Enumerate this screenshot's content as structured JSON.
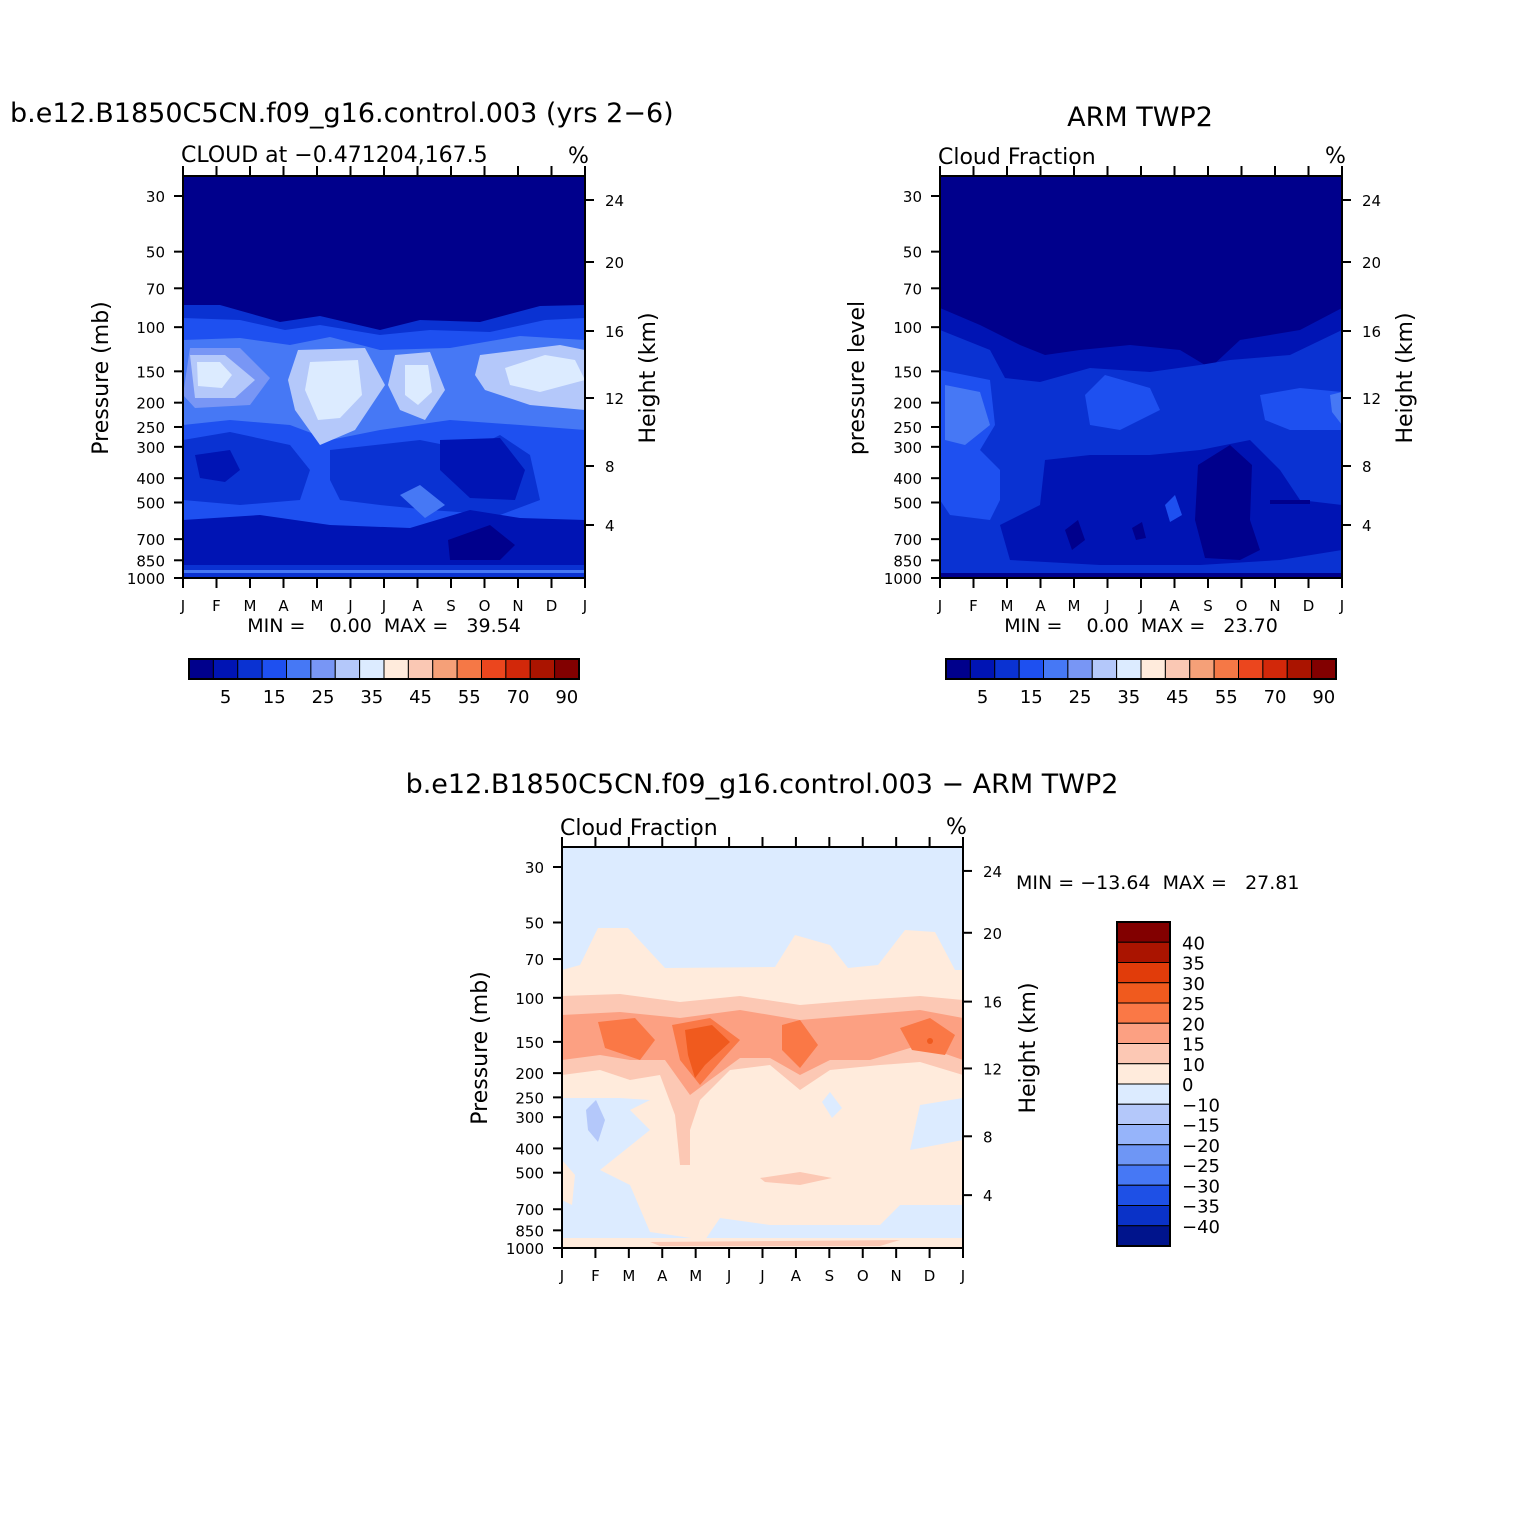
{
  "months": [
    "J",
    "F",
    "M",
    "A",
    "M",
    "J",
    "J",
    "A",
    "S",
    "O",
    "N",
    "D",
    "J"
  ],
  "pressure_ticks": [
    "30",
    "50",
    "70",
    "100",
    "150",
    "200",
    "250",
    "300",
    "400",
    "500",
    "700",
    "850",
    "1000"
  ],
  "height_ticks": [
    "24",
    "20",
    "16",
    "12",
    "8",
    "4"
  ],
  "height_label": "Height (km)",
  "seq_colors": [
    "#00008c",
    "#0014b4",
    "#0a32d2",
    "#1e50f0",
    "#4678f5",
    "#7896f5",
    "#b4c8fa",
    "#dcebff",
    "#ffebdc",
    "#fac8b4",
    "#f5a078",
    "#f57846",
    "#eb461e",
    "#d2280a",
    "#aa1400",
    "#820000"
  ],
  "seq_labels": [
    "5",
    "15",
    "25",
    "35",
    "45",
    "55",
    "70",
    "90"
  ],
  "diff_colors": [
    "#820000",
    "#aa1400",
    "#e13c0a",
    "#f05a1e",
    "#fa7846",
    "#fca082",
    "#fcc8b4",
    "#ffebdc",
    "#dcebff",
    "#b4c8fa",
    "#96b4fa",
    "#6e96f5",
    "#4678f5",
    "#1e50e6",
    "#0a32c8",
    "#00148c"
  ],
  "diff_labels": [
    "40",
    "35",
    "30",
    "25",
    "20",
    "15",
    "10",
    "0",
    "−10",
    "−15",
    "−20",
    "−25",
    "−30",
    "−35",
    "−40"
  ],
  "chart_data": [
    {
      "type": "heatmap",
      "title": "b.e12.B1850C5CN.f09_g16.control.003 (yrs 2−6)",
      "subtitle_left": "CLOUD at −0.471204,167.5",
      "units": "%",
      "ylabel": "Pressure (mb)",
      "y2label": "Height (km)",
      "xlabel": "",
      "stats": "MIN =    0.00  MAX =   39.54",
      "x": [
        "J",
        "F",
        "M",
        "A",
        "M",
        "J",
        "J",
        "A",
        "S",
        "O",
        "N",
        "D",
        "J"
      ],
      "y_pressure_mb": [
        30,
        50,
        70,
        100,
        150,
        200,
        250,
        300,
        400,
        500,
        700,
        850,
        1000
      ],
      "y_height_km": [
        24,
        20,
        16,
        12,
        8,
        4
      ],
      "min": 0.0,
      "max": 39.54,
      "colorbar_labels": [
        "5",
        "15",
        "25",
        "35",
        "45",
        "55",
        "70",
        "90"
      ]
    },
    {
      "type": "heatmap",
      "title": "ARM TWP2",
      "subtitle_left": "Cloud Fraction",
      "units": "%",
      "ylabel": "pressure level",
      "y2label": "Height (km)",
      "xlabel": "",
      "stats": "MIN =    0.00  MAX =   23.70",
      "x": [
        "J",
        "F",
        "M",
        "A",
        "M",
        "J",
        "J",
        "A",
        "S",
        "O",
        "N",
        "D",
        "J"
      ],
      "y_pressure_mb": [
        30,
        50,
        70,
        100,
        150,
        200,
        250,
        300,
        400,
        500,
        700,
        850,
        1000
      ],
      "y_height_km": [
        24,
        20,
        16,
        12,
        8,
        4
      ],
      "min": 0.0,
      "max": 23.7,
      "colorbar_labels": [
        "5",
        "15",
        "25",
        "35",
        "45",
        "55",
        "70",
        "90"
      ]
    },
    {
      "type": "heatmap",
      "title": "b.e12.B1850C5CN.f09_g16.control.003 − ARM TWP2",
      "subtitle_left": "Cloud Fraction",
      "units": "%",
      "ylabel": "Pressure (mb)",
      "y2label": "Height (km)",
      "xlabel": "",
      "stats": "MIN = −13.64  MAX =   27.81",
      "x": [
        "J",
        "F",
        "M",
        "A",
        "M",
        "J",
        "J",
        "A",
        "S",
        "O",
        "N",
        "D",
        "J"
      ],
      "y_pressure_mb": [
        30,
        50,
        70,
        100,
        150,
        200,
        250,
        300,
        400,
        500,
        700,
        850,
        1000
      ],
      "y_height_km": [
        24,
        20,
        16,
        12,
        8,
        4
      ],
      "min": -13.64,
      "max": 27.81,
      "colorbar_labels": [
        "40",
        "35",
        "30",
        "25",
        "20",
        "15",
        "10",
        "0",
        "−10",
        "−15",
        "−20",
        "−25",
        "−30",
        "−35",
        "−40"
      ]
    }
  ]
}
